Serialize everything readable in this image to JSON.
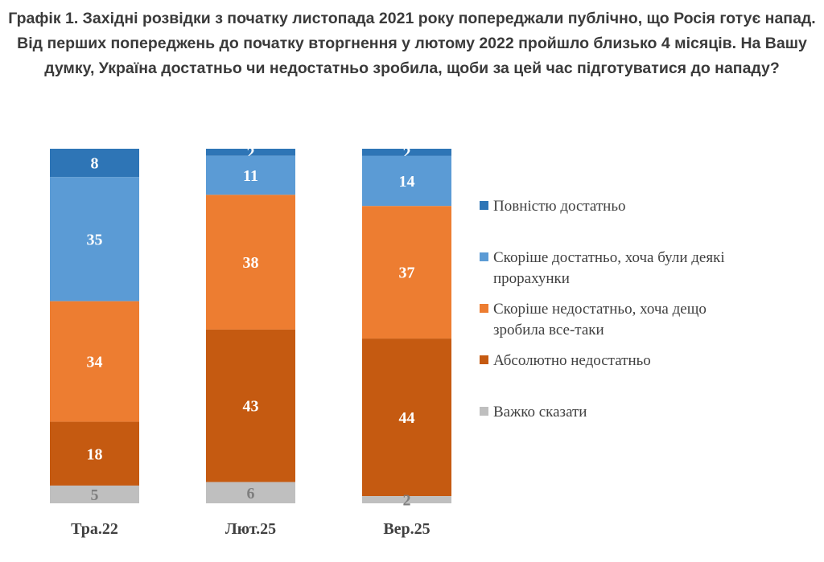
{
  "chart_data": {
    "type": "bar",
    "stacked": true,
    "title": "Графік 1. Західні розвідки з початку листопада 2021 року попереджали публічно, що Росія готує напад. Від перших попереджень до початку вторгнення у лютому 2022 пройшло близько 4 місяців. На Вашу думку, Україна достатньо чи недостатньо зробила, щоби за цей час підготуватися до нападу?",
    "categories": [
      "Тра.22",
      "Лют.25",
      "Вер.25"
    ],
    "series": [
      {
        "name": "Повністю достатньо",
        "color": "#2E75B6",
        "values": [
          8,
          2,
          2
        ]
      },
      {
        "name": "Скоріше достатньо, хоча були деякі прорахунки",
        "color": "#5B9BD5",
        "values": [
          35,
          11,
          14
        ]
      },
      {
        "name": "Скоріше недостатньо, хоча дещо зробила все-таки",
        "color": "#ED7D31",
        "values": [
          34,
          38,
          37
        ]
      },
      {
        "name": "Абсолютно недостатньо",
        "color": "#C55A11",
        "values": [
          18,
          43,
          44
        ]
      },
      {
        "name": "Важко сказати",
        "color": "#BFBFBF",
        "values": [
          5,
          6,
          2
        ]
      }
    ],
    "legend_position": "right",
    "grid": false
  }
}
